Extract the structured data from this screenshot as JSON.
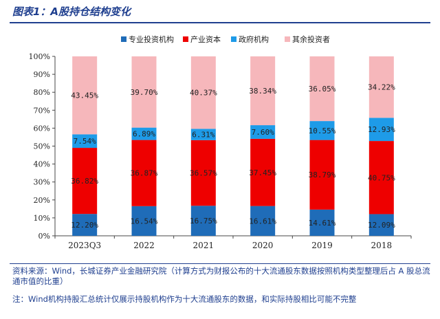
{
  "figure_title": "图表1：A股持仓结构变化",
  "source_text": "资料来源：Wind，长城证券产业金融研究院（计算方式为财报公布的十大流通股东数据按照机构类型整理后占 A 股总流通市值的比重）",
  "note_text": "注：Wind机构持股汇总统计仅展示持股机构作为十大流通股东的数据，和实际持股相比可能不完整",
  "chart_data": {
    "type": "bar",
    "stacked": true,
    "percent": true,
    "categories": [
      "2023Q3",
      "2022",
      "2021",
      "2020",
      "2019",
      "2018"
    ],
    "series": [
      {
        "name": "专业投资机构",
        "color": "#1f6cb8",
        "values": [
          12.2,
          16.54,
          16.75,
          16.61,
          14.61,
          12.09
        ],
        "labels": [
          "12.20%",
          "16.54%",
          "16.75%",
          "16.61%",
          "14.61%",
          "12.09%"
        ]
      },
      {
        "name": "产业资本",
        "color": "#ee0000",
        "values": [
          36.82,
          36.87,
          36.57,
          37.45,
          38.79,
          40.75
        ],
        "labels": [
          "36.82%",
          "36.87%",
          "36.57%",
          "37.45%",
          "38.79%",
          "40.75%"
        ]
      },
      {
        "name": "政府机构",
        "color": "#1e9be8",
        "values": [
          7.54,
          6.89,
          6.31,
          7.6,
          10.55,
          12.93
        ],
        "labels": [
          "7.54%",
          "6.89%",
          "6.31%",
          "7.60%",
          "10.55%",
          "12.93%"
        ]
      },
      {
        "name": "其余投资者",
        "color": "#f6b7bb",
        "values": [
          43.45,
          39.7,
          40.37,
          38.34,
          36.05,
          34.22
        ],
        "labels": [
          "43.45%",
          "39.70%",
          "40.37%",
          "38.34%",
          "36.05%",
          "34.22%"
        ]
      }
    ],
    "y_ticks": [
      "0%",
      "10%",
      "20%",
      "30%",
      "40%",
      "50%",
      "60%",
      "70%",
      "80%",
      "90%",
      "100%"
    ],
    "ylim": [
      0,
      100
    ],
    "grid": false,
    "legend_position": "top"
  }
}
